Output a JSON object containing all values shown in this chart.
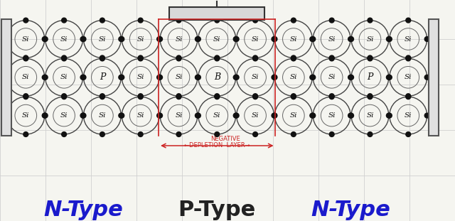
{
  "bg_color": "#f5f5f0",
  "grid_color": "#d0d0d0",
  "circle_edge_color": "#444444",
  "inner_circle_ratio": 0.58,
  "dot_color": "#111111",
  "bond_color": "#444444",
  "terminal_color": "#555555",
  "terminal_fill": "#e0e0e0",
  "depletion_color": "#cc2222",
  "base_color": "#333333",
  "base_fill": "#d8d8d8",
  "n_left_atoms": [
    [
      "Si",
      "Si",
      "Si",
      "Si"
    ],
    [
      "Si",
      "Si",
      "P",
      "Si"
    ],
    [
      "Si",
      "Si",
      "Si",
      "Si"
    ]
  ],
  "p_atoms": [
    [
      "Si",
      "Si",
      "Si"
    ],
    [
      "Si",
      "B",
      "Si"
    ],
    [
      "Si",
      "Si",
      "Si"
    ]
  ],
  "n_right_atoms": [
    [
      "Si",
      "Si",
      "Si",
      "Si"
    ],
    [
      "Si",
      "Si",
      "P",
      "Si"
    ],
    [
      "Si",
      "Si",
      "Si",
      "Si"
    ]
  ],
  "n_left_label": "N-Type",
  "p_label": "P-Type",
  "n_right_label": "N-Type",
  "n_label_color": "#1a1acc",
  "p_label_color": "#222222",
  "label_fontsize": 22,
  "dep_label_top": "NEGATIVE",
  "dep_label_bot": "←DEPLETION  LAYER→",
  "dep_label_color": "#cc2222",
  "dep_label_fontsize": 6
}
